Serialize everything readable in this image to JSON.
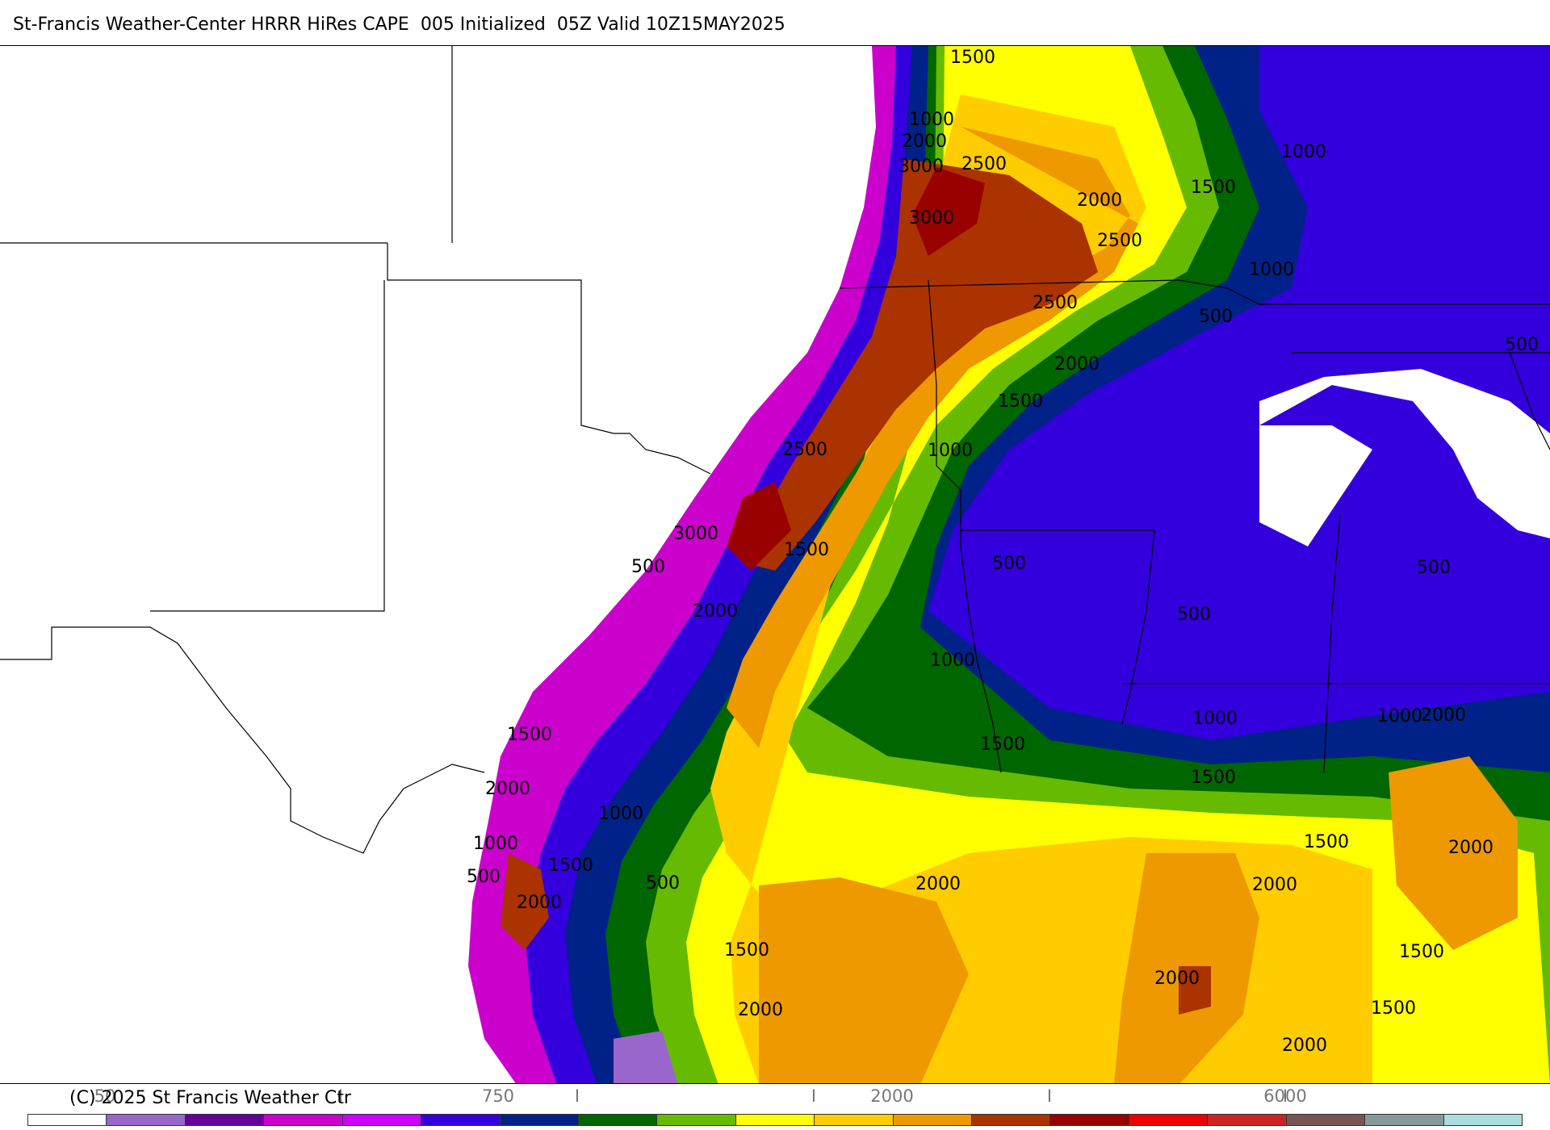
{
  "header": {
    "title": "St-Francis Weather-Center HRRR HiRes CAPE  005 Initialized  05Z Valid 10Z15MAY2025"
  },
  "footer": {
    "copyright": "(C) 2025 St Francis Weather Ctr"
  },
  "legend": {
    "colors": [
      "#ffffff",
      "#9966cc",
      "#660099",
      "#cc00cc",
      "#cc00ff",
      "#3300dd",
      "#002288",
      "#006600",
      "#66bb00",
      "#ffff00",
      "#ffcc00",
      "#ee9900",
      "#aa3300",
      "#990000",
      "#ee0000",
      "#cc2222",
      "#775555",
      "#889999",
      "#aadddd"
    ],
    "ticks": [
      {
        "label": "50"
      },
      {
        "label": "I"
      },
      {
        "label": "750"
      },
      {
        "label": "I"
      },
      {
        "label": "I"
      },
      {
        "label": "2000"
      },
      {
        "label": "I"
      },
      {
        "label": "6000"
      },
      {
        "label": "I"
      }
    ]
  },
  "map": {
    "contour_labels": [
      {
        "text": "1500"
      },
      {
        "text": "1000"
      },
      {
        "text": "2000"
      },
      {
        "text": "3000"
      },
      {
        "text": "2500"
      },
      {
        "text": "1000"
      },
      {
        "text": "2000"
      },
      {
        "text": "1500"
      },
      {
        "text": "3000"
      },
      {
        "text": "2500"
      },
      {
        "text": "1000"
      },
      {
        "text": "2500"
      },
      {
        "text": "500"
      },
      {
        "text": "500"
      },
      {
        "text": "2000"
      },
      {
        "text": "1500"
      },
      {
        "text": "1000"
      },
      {
        "text": "2500"
      },
      {
        "text": "3000"
      },
      {
        "text": "500"
      },
      {
        "text": "1500"
      },
      {
        "text": "500"
      },
      {
        "text": "2000"
      },
      {
        "text": "500"
      },
      {
        "text": "500"
      },
      {
        "text": "1000"
      },
      {
        "text": "1000"
      },
      {
        "text": "1000"
      },
      {
        "text": "2000"
      },
      {
        "text": "1500"
      },
      {
        "text": "1500"
      },
      {
        "text": "1500"
      },
      {
        "text": "2000"
      },
      {
        "text": "1000"
      },
      {
        "text": "1000"
      },
      {
        "text": "1500"
      },
      {
        "text": "500"
      },
      {
        "text": "1500"
      },
      {
        "text": "2000"
      },
      {
        "text": "2000"
      },
      {
        "text": "2000"
      },
      {
        "text": "2000"
      },
      {
        "text": "500"
      },
      {
        "text": "1500"
      },
      {
        "text": "2000"
      },
      {
        "text": "1500"
      },
      {
        "text": "1500"
      },
      {
        "text": "2000"
      },
      {
        "text": "2000"
      }
    ]
  }
}
